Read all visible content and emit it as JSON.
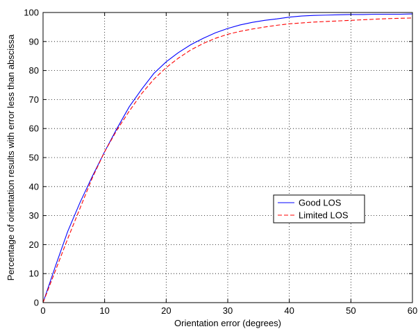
{
  "chart_data": {
    "type": "line",
    "title": "",
    "xlabel": "Orientation error (degrees)",
    "ylabel": "Percentage of orientation results with error less than abscissa",
    "xlim": [
      0,
      60
    ],
    "ylim": [
      0,
      100
    ],
    "xticks": [
      "0",
      "10",
      "20",
      "30",
      "40",
      "50",
      "60"
    ],
    "yticks": [
      "0",
      "10",
      "20",
      "30",
      "40",
      "50",
      "60",
      "70",
      "80",
      "90",
      "100"
    ],
    "grid": true,
    "grid_style": "dotted",
    "legend_position": "center-right",
    "series": [
      {
        "name": "Good LOS",
        "color": "#0000ff",
        "dash": "solid",
        "x": [
          0,
          2,
          4,
          6,
          8,
          10,
          12,
          14,
          16,
          18,
          20,
          22,
          24,
          26,
          28,
          30,
          32,
          34,
          36,
          38,
          40,
          42,
          44,
          46,
          48,
          50,
          52,
          54,
          56,
          58,
          60
        ],
        "y": [
          0,
          12.5,
          24.5,
          34.5,
          43.5,
          52,
          60,
          67.5,
          73.5,
          79,
          83,
          86.2,
          88.9,
          91.1,
          93,
          94.5,
          95.7,
          96.6,
          97.3,
          97.8,
          98.4,
          98.8,
          99.0,
          99.1,
          99.2,
          99.3,
          99.3,
          99.4,
          99.4,
          99.4,
          99.5
        ]
      },
      {
        "name": "Limited LOS",
        "color": "#ff0000",
        "dash": "dashed",
        "x": [
          0,
          2,
          4,
          6,
          8,
          10,
          12,
          14,
          16,
          18,
          20,
          22,
          24,
          26,
          28,
          30,
          32,
          34,
          36,
          38,
          40,
          42,
          44,
          46,
          48,
          50,
          52,
          54,
          56,
          58,
          60
        ],
        "y": [
          0,
          11,
          22,
          32.5,
          43,
          52,
          59.5,
          66,
          72,
          77,
          81,
          84.3,
          87.1,
          89.3,
          91.1,
          92.5,
          93.5,
          94.3,
          95.0,
          95.6,
          96.1,
          96.4,
          96.7,
          96.9,
          97.1,
          97.3,
          97.5,
          97.7,
          97.9,
          98.0,
          98.1
        ]
      }
    ]
  }
}
